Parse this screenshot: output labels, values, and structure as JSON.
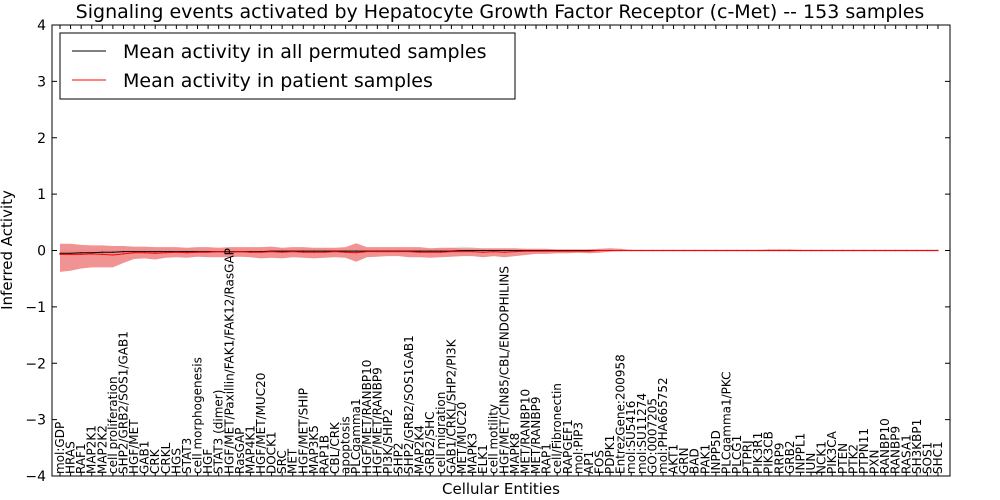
{
  "chart_data": {
    "type": "line",
    "title": "Signaling events activated by Hepatocyte Growth Factor Receptor (c-Met) -- 153 samples",
    "xlabel": "Cellular Entities",
    "ylabel": "Inferred Activity",
    "ylim": [
      -4,
      4
    ],
    "yticks": [
      -4,
      -3,
      -2,
      -1,
      0,
      1,
      2,
      3,
      4
    ],
    "ytick_labels": [
      "−4",
      "−3",
      "−2",
      "−1",
      "0",
      "1",
      "2",
      "3",
      "4"
    ],
    "legend": {
      "placement": "top-left",
      "entries": [
        {
          "label": "Mean activity in all permuted samples",
          "color": "#000000"
        },
        {
          "label": "Mean activity in patient samples",
          "color": "#ff0000"
        }
      ]
    },
    "categories": [
      "mol:GDP",
      "HRAS",
      "RAF1",
      "MAP2K1",
      "MAP2K2",
      "cell proliferation",
      "SHP2/GRB2/SOS1/GAB1",
      "HGF/MET",
      "GAB1",
      "CRK",
      "CRKL",
      "HGS",
      "STAT3",
      "cell morphogenesis",
      "HGF",
      "STAT3 (dimer)",
      "HGF/MET/Paxillin/FAK1/FAK12/RasGAP",
      "RasGAP",
      "MAP4K1",
      "HGF/MET/MUC20",
      "DOCK1",
      "SRC",
      "MET",
      "HGF/MET/SHIP",
      "MAP3K5",
      "RAP1B",
      "CBL/CRK",
      "apoptosis",
      "PLCgamma1",
      "HGF/MET/RANBP10",
      "HGF/MET/RANBP9",
      "PI3K/SHIP2",
      "SHP2",
      "SHP2/GRB2/SOS1GAB1",
      "MAP2K4",
      "GRB2/SHC",
      "cell migration",
      "GAB1/CRKL/SHP2/PI3K",
      "MET/MUC20",
      "MAPK3",
      "ELK1",
      "cell motility",
      "HGF/MET/CIN85/CBL/ENDOPHILINS",
      "MAPK8",
      "MET/RANBP10",
      "MET/RANBP9",
      "RAP1",
      "cell/Fibronectin",
      "RAPGEF1",
      "mol:PIP3",
      "AP1",
      "FOS",
      "PDPK1",
      "EntrezGene:200958",
      "mol:SU5416",
      "mol:SU11274",
      "GO:0007205",
      "mol:PHA665752",
      "AKT1",
      "GRN",
      "BAD",
      "PAK1",
      "INPP5D",
      "PLCgamma1/PKC",
      "PLCG1",
      "PTPRJ",
      "PIK3R1",
      "PIK3CB",
      "RRP9",
      "GRB2",
      "INPPL1",
      "JUN",
      "NCK1",
      "PIK3CA",
      "PTEN",
      "PTK2",
      "PTPN11",
      "PXN",
      "RANBP10",
      "RANBP9",
      "RASA1",
      "SH3KBP1",
      "SOS1",
      "SHC1"
    ],
    "series": [
      {
        "name": "Mean activity in all permuted samples",
        "color": "#000000",
        "values": [
          -0.05,
          -0.05,
          -0.04,
          -0.04,
          -0.03,
          -0.03,
          -0.02,
          -0.02,
          -0.02,
          -0.02,
          -0.02,
          -0.02,
          -0.02,
          -0.02,
          -0.02,
          -0.02,
          -0.02,
          -0.02,
          -0.02,
          -0.02,
          -0.01,
          -0.01,
          -0.01,
          -0.01,
          -0.01,
          -0.01,
          -0.01,
          -0.01,
          -0.01,
          -0.01,
          -0.01,
          -0.01,
          -0.01,
          -0.01,
          -0.01,
          -0.01,
          -0.01,
          -0.01,
          0.0,
          0.0,
          0.0,
          0.0,
          0.0,
          0.0,
          0.0,
          0.0,
          0.0,
          0.0,
          0.0,
          0.0,
          0.0,
          0.0,
          0.0,
          0.0,
          0.0,
          0.0,
          0.0,
          0.0,
          0.0,
          0.0,
          0.0,
          0.0,
          0.0,
          0.0,
          0.0,
          0.0,
          0.0,
          0.0,
          0.0,
          0.0,
          0.0,
          0.0,
          0.0,
          0.0,
          0.0,
          0.0,
          0.0,
          0.0,
          0.0,
          0.0,
          0.0,
          0.0,
          0.0,
          0.0
        ],
        "lower": [
          -0.08,
          -0.08,
          -0.07,
          -0.06,
          -0.06,
          -0.05,
          -0.05,
          -0.05,
          -0.05,
          -0.05,
          -0.04,
          -0.04,
          -0.04,
          -0.04,
          -0.04,
          -0.04,
          -0.04,
          -0.04,
          -0.04,
          -0.04,
          -0.03,
          -0.03,
          -0.03,
          -0.03,
          -0.03,
          -0.03,
          -0.03,
          -0.03,
          -0.03,
          -0.03,
          -0.03,
          -0.03,
          -0.03,
          -0.03,
          -0.03,
          -0.03,
          -0.03,
          -0.03,
          -0.03,
          -0.03,
          -0.03,
          -0.03,
          -0.03,
          -0.03,
          -0.03,
          -0.03,
          -0.02,
          -0.02,
          -0.02,
          -0.02,
          -0.02,
          -0.02,
          -0.02,
          -0.02,
          -0.02,
          -0.02,
          -0.02,
          -0.02,
          -0.02,
          -0.02,
          -0.02,
          -0.02,
          -0.02,
          -0.02,
          -0.02,
          -0.02,
          -0.02,
          -0.02,
          -0.02,
          -0.02,
          -0.02,
          -0.02,
          -0.02,
          -0.02,
          -0.02,
          -0.02,
          -0.02,
          -0.02,
          -0.02,
          -0.02,
          -0.02,
          -0.02,
          -0.02,
          -0.02
        ],
        "upper": [
          0.02,
          0.02,
          0.02,
          0.02,
          0.02,
          0.02,
          0.02,
          0.02,
          0.02,
          0.02,
          0.02,
          0.02,
          0.02,
          0.02,
          0.02,
          0.02,
          0.02,
          0.02,
          0.02,
          0.02,
          0.02,
          0.02,
          0.02,
          0.02,
          0.02,
          0.02,
          0.02,
          0.02,
          0.02,
          0.02,
          0.02,
          0.02,
          0.02,
          0.02,
          0.02,
          0.02,
          0.03,
          0.05,
          0.07,
          0.06,
          0.03,
          0.02,
          0.02,
          0.02,
          0.02,
          0.02,
          0.02,
          0.02,
          0.02,
          0.02,
          0.02,
          0.02,
          0.02,
          0.02,
          0.02,
          0.02,
          0.02,
          0.02,
          0.02,
          0.02,
          0.02,
          0.02,
          0.02,
          0.02,
          0.02,
          0.02,
          0.02,
          0.02,
          0.02,
          0.02,
          0.02,
          0.02,
          0.02,
          0.02,
          0.02,
          0.02,
          0.02,
          0.02,
          0.02,
          0.02,
          0.02,
          0.02,
          0.02,
          0.02
        ]
      },
      {
        "name": "Mean activity in patient samples",
        "color": "#ff0000",
        "values": [
          -0.07,
          -0.07,
          -0.07,
          -0.06,
          -0.07,
          -0.08,
          -0.06,
          -0.04,
          -0.04,
          -0.05,
          -0.04,
          -0.03,
          -0.04,
          -0.03,
          -0.03,
          -0.02,
          -0.03,
          -0.02,
          -0.03,
          -0.03,
          -0.02,
          -0.03,
          -0.02,
          -0.03,
          -0.03,
          -0.03,
          -0.02,
          -0.03,
          -0.04,
          -0.02,
          -0.02,
          -0.02,
          -0.02,
          -0.02,
          -0.03,
          -0.03,
          -0.03,
          -0.02,
          -0.02,
          -0.02,
          -0.03,
          -0.02,
          -0.03,
          -0.02,
          -0.01,
          -0.01,
          -0.01,
          -0.01,
          -0.01,
          -0.01,
          -0.01,
          0.0,
          0.0,
          0.0,
          0.0,
          0.0,
          0.0,
          0.0,
          0.0,
          0.0,
          0.0,
          0.0,
          0.0,
          0.0,
          0.0,
          0.0,
          0.0,
          0.0,
          0.0,
          0.0,
          0.0,
          0.0,
          0.0,
          0.0,
          0.0,
          0.0,
          0.0,
          0.0,
          0.0,
          0.0,
          0.0,
          0.0,
          0.0,
          0.0
        ],
        "lower": [
          -0.38,
          -0.36,
          -0.32,
          -0.3,
          -0.3,
          -0.3,
          -0.22,
          -0.15,
          -0.14,
          -0.16,
          -0.13,
          -0.12,
          -0.13,
          -0.11,
          -0.12,
          -0.12,
          -0.12,
          -0.11,
          -0.12,
          -0.14,
          -0.13,
          -0.14,
          -0.12,
          -0.13,
          -0.14,
          -0.13,
          -0.12,
          -0.13,
          -0.2,
          -0.12,
          -0.11,
          -0.1,
          -0.1,
          -0.12,
          -0.12,
          -0.13,
          -0.12,
          -0.11,
          -0.1,
          -0.1,
          -0.12,
          -0.1,
          -0.12,
          -0.1,
          -0.08,
          -0.06,
          -0.06,
          -0.05,
          -0.05,
          -0.04,
          -0.05,
          -0.04,
          -0.02,
          -0.01,
          -0.01,
          -0.01,
          -0.01,
          -0.01,
          -0.01,
          -0.01,
          -0.01,
          -0.01,
          -0.01,
          -0.01,
          -0.01,
          -0.01,
          -0.01,
          -0.01,
          -0.01,
          -0.01,
          -0.01,
          -0.01,
          -0.01,
          -0.01,
          -0.01,
          -0.01,
          -0.01,
          -0.01,
          -0.01,
          -0.01,
          -0.01,
          -0.01,
          -0.01,
          -0.01
        ],
        "upper": [
          0.12,
          0.12,
          0.1,
          0.09,
          0.09,
          0.08,
          0.08,
          0.07,
          0.07,
          0.06,
          0.06,
          0.06,
          0.05,
          0.06,
          0.06,
          0.05,
          0.06,
          0.06,
          0.06,
          0.06,
          0.07,
          0.05,
          0.06,
          0.06,
          0.05,
          0.05,
          0.05,
          0.06,
          0.13,
          0.06,
          0.06,
          0.06,
          0.06,
          0.06,
          0.06,
          0.04,
          0.05,
          0.05,
          0.04,
          0.04,
          0.04,
          0.04,
          0.04,
          0.04,
          0.03,
          0.03,
          0.03,
          0.02,
          0.02,
          0.02,
          0.02,
          0.03,
          0.04,
          0.03,
          0.01,
          0.01,
          0.01,
          0.01,
          0.01,
          0.01,
          0.01,
          0.01,
          0.01,
          0.01,
          0.01,
          0.01,
          0.01,
          0.02,
          0.02,
          0.02,
          0.01,
          0.01,
          0.01,
          0.01,
          0.01,
          0.01,
          0.01,
          0.01,
          0.01,
          0.01,
          0.01,
          0.01,
          0.01,
          0.01
        ]
      }
    ]
  }
}
